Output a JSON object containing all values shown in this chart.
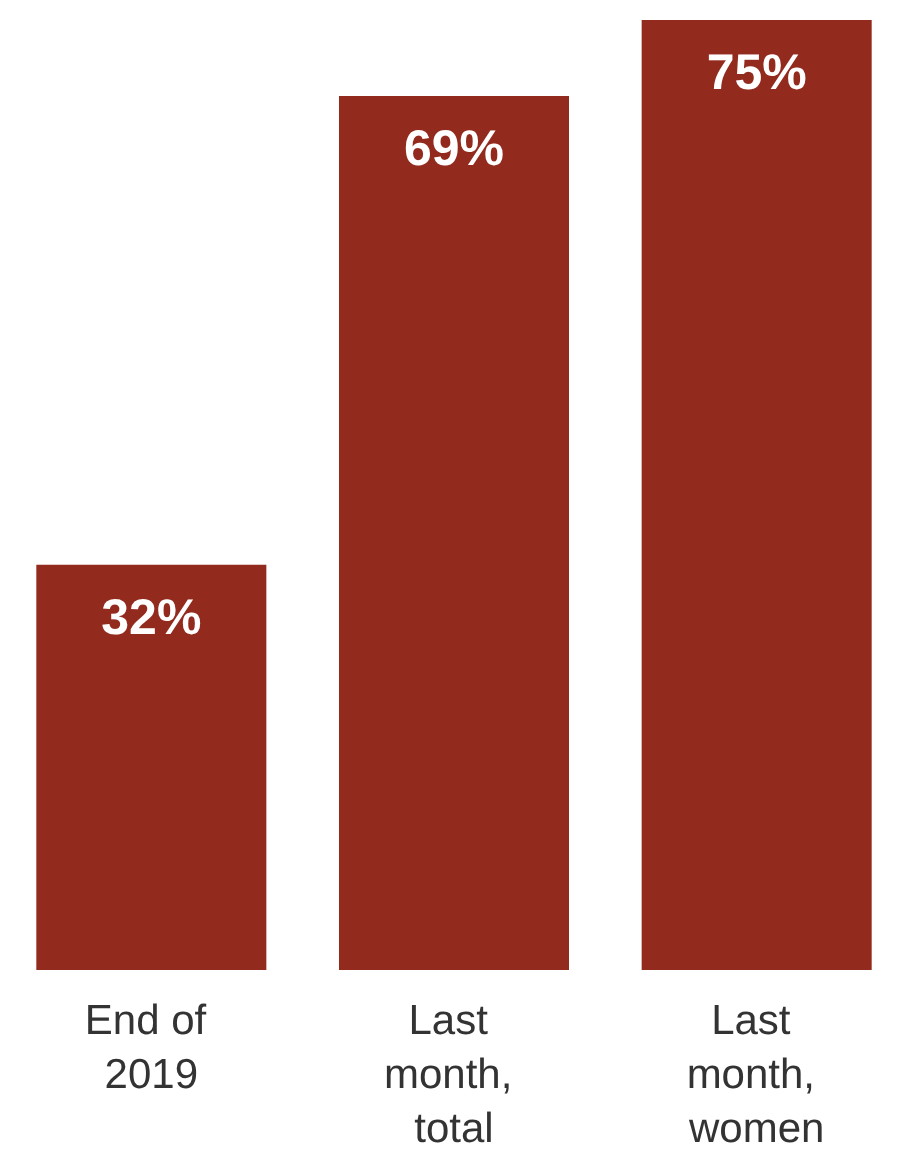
{
  "chart_data": {
    "type": "bar",
    "categories": [
      "End of 2019",
      "Last month, total",
      "Last month, women"
    ],
    "values": [
      32,
      69,
      75
    ],
    "value_labels": [
      "32%",
      "69%",
      "75%"
    ],
    "color": "#922a1e"
  }
}
